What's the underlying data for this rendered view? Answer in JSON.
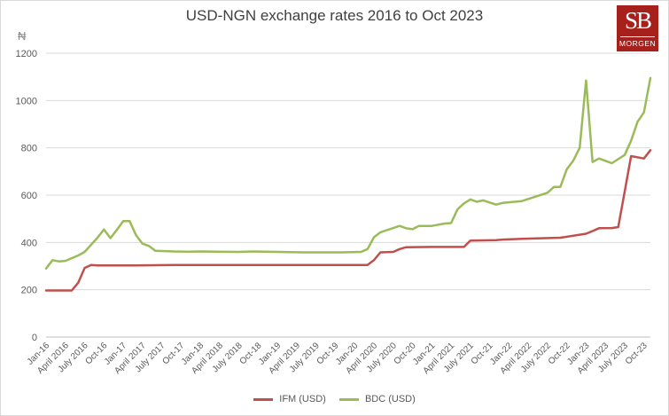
{
  "chart_data": {
    "type": "line",
    "title": "USD-NGN exchange rates 2016 to Oct 2023",
    "unit_label": "₦",
    "ylim": [
      0,
      1200
    ],
    "yticks": [
      0,
      200,
      400,
      600,
      800,
      1000,
      1200
    ],
    "grid": true,
    "legend_position": "bottom",
    "x_tick_labels": [
      "Jan-16",
      "April 2016",
      "July 2016",
      "Oct-16",
      "Jan-17",
      "April 2017",
      "July 2017",
      "Oct-17",
      "Jan-18",
      "April 2018",
      "July 2018",
      "Oct-18",
      "Jan-19",
      "April 2019",
      "July 2019",
      "Oct-19",
      "Jan-20",
      "April 2020",
      "July 2020",
      "Oct-20",
      "Jan-21",
      "April 2021",
      "July 2021",
      "Oct-21",
      "Jan-22",
      "April 2022",
      "July 2022",
      "Oct-22",
      "Jan-23",
      "April 2023",
      "July 2023",
      "Oct-23"
    ],
    "x_range_months": [
      0,
      94
    ],
    "series": [
      {
        "name": "IFM (USD)",
        "color": "#c0504d",
        "points": [
          [
            0,
            197
          ],
          [
            1,
            197
          ],
          [
            2,
            197
          ],
          [
            3,
            197
          ],
          [
            4,
            197
          ],
          [
            5,
            230
          ],
          [
            6,
            292
          ],
          [
            7,
            305
          ],
          [
            8,
            303
          ],
          [
            10,
            303
          ],
          [
            14,
            303
          ],
          [
            20,
            305
          ],
          [
            30,
            305
          ],
          [
            40,
            305
          ],
          [
            49,
            305
          ],
          [
            50,
            305
          ],
          [
            51,
            325
          ],
          [
            52,
            358
          ],
          [
            54,
            360
          ],
          [
            55,
            372
          ],
          [
            56,
            380
          ],
          [
            60,
            381
          ],
          [
            65,
            381
          ],
          [
            66,
            408
          ],
          [
            70,
            410
          ],
          [
            71,
            412
          ],
          [
            74,
            415
          ],
          [
            80,
            420
          ],
          [
            84,
            437
          ],
          [
            85,
            448
          ],
          [
            86,
            460
          ],
          [
            88,
            461
          ],
          [
            89,
            465
          ],
          [
            90,
            615
          ],
          [
            91,
            765
          ],
          [
            92,
            760
          ],
          [
            93,
            755
          ],
          [
            94,
            790
          ]
        ]
      },
      {
        "name": "BDC (USD)",
        "color": "#9bbb59",
        "points": [
          [
            0,
            290
          ],
          [
            1,
            325
          ],
          [
            2,
            320
          ],
          [
            3,
            322
          ],
          [
            5,
            345
          ],
          [
            6,
            360
          ],
          [
            7,
            390
          ],
          [
            8,
            420
          ],
          [
            9,
            455
          ],
          [
            10,
            418
          ],
          [
            11,
            453
          ],
          [
            12,
            490
          ],
          [
            13,
            490
          ],
          [
            14,
            430
          ],
          [
            15,
            395
          ],
          [
            16,
            385
          ],
          [
            17,
            365
          ],
          [
            20,
            362
          ],
          [
            22,
            361
          ],
          [
            24,
            362
          ],
          [
            30,
            360
          ],
          [
            32,
            362
          ],
          [
            36,
            360
          ],
          [
            40,
            358
          ],
          [
            46,
            358
          ],
          [
            49,
            360
          ],
          [
            50,
            372
          ],
          [
            51,
            422
          ],
          [
            52,
            443
          ],
          [
            53,
            452
          ],
          [
            55,
            470
          ],
          [
            56,
            460
          ],
          [
            57,
            456
          ],
          [
            58,
            470
          ],
          [
            60,
            470
          ],
          [
            62,
            480
          ],
          [
            63,
            482
          ],
          [
            64,
            540
          ],
          [
            65,
            565
          ],
          [
            66,
            582
          ],
          [
            67,
            572
          ],
          [
            68,
            578
          ],
          [
            70,
            560
          ],
          [
            71,
            567
          ],
          [
            74,
            575
          ],
          [
            78,
            610
          ],
          [
            79,
            635
          ],
          [
            80,
            635
          ],
          [
            81,
            710
          ],
          [
            82,
            745
          ],
          [
            83,
            800
          ],
          [
            84,
            1085
          ],
          [
            85,
            740
          ],
          [
            86,
            755
          ],
          [
            87,
            745
          ],
          [
            88,
            735
          ],
          [
            90,
            770
          ],
          [
            91,
            830
          ],
          [
            92,
            910
          ],
          [
            93,
            950
          ],
          [
            94,
            1095
          ]
        ]
      }
    ]
  },
  "logo": {
    "monogram": "SB",
    "wordmark": "MORGEN"
  }
}
